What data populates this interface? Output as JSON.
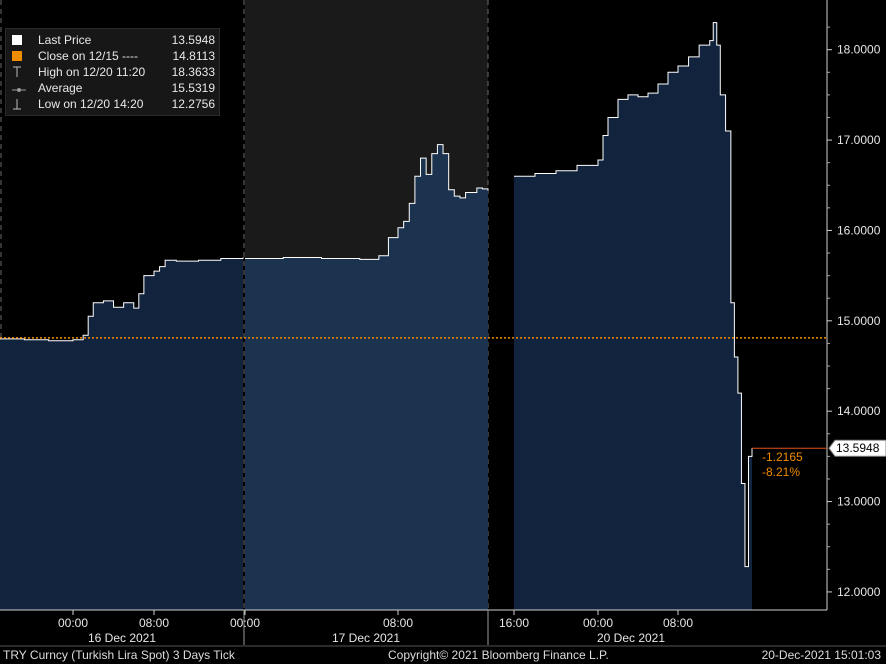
{
  "legend": {
    "items": [
      {
        "label": "Last Price",
        "value": "13.5948"
      },
      {
        "label": "Close on 12/15 ----",
        "value": "14.8113"
      },
      {
        "label": "High on 12/20 11:20",
        "value": "18.3633"
      },
      {
        "label": "Average",
        "value": "15.5319"
      },
      {
        "label": "Low on 12/20 14:20",
        "value": "12.2756"
      }
    ]
  },
  "last_price_tag": "13.5948",
  "change": {
    "abs": "-1.2165",
    "pct": "-8.21%"
  },
  "footer": {
    "left": "TRY Curncy (Turkish Lira Spot) 3 Days  Tick",
    "center": "Copyright© 2021 Bloomberg Finance L.P.",
    "right": "20-Dec-2021 15:01:03"
  },
  "colors": {
    "area": "#12233d",
    "area_shaded": "#1c3350",
    "price_line": "#ffffff",
    "close_line": "#f08c00",
    "change_text": "#f08c00",
    "shade_bg": "#1a1a1a"
  },
  "chart_data": {
    "type": "area",
    "title": "",
    "ylabel": "",
    "xlabel": "",
    "ylim": [
      11.8,
      18.55
    ],
    "y_ticks": [
      "12.0000",
      "13.0000",
      "14.0000",
      "15.0000",
      "16.0000",
      "17.0000",
      "18.0000"
    ],
    "reference_line": {
      "name": "Close on 12/15",
      "value": 14.8113
    },
    "x_ticks": [
      {
        "label": "00:00",
        "time": "16 Dec 00:00"
      },
      {
        "label": "08:00",
        "time": "16 Dec 08:00"
      },
      {
        "label": "00:00",
        "time": "17 Dec 00:00"
      },
      {
        "label": "08:00",
        "time": "17 Dec 08:00"
      },
      {
        "label": "16:00",
        "time": "19 Dec 16:00"
      },
      {
        "label": "00:00",
        "time": "20 Dec 00:00"
      },
      {
        "label": "08:00",
        "time": "20 Dec 08:00"
      }
    ],
    "day_labels": [
      "16 Dec 2021",
      "17 Dec 2021",
      "20 Dec 2021"
    ],
    "segments": [
      {
        "day": "16 Dec 2021",
        "points": [
          [
            "15 Dec 18:00",
            14.8
          ],
          [
            "15 Dec 20:00",
            14.79
          ],
          [
            "15 Dec 22:00",
            14.78
          ],
          [
            "16 Dec 00:00",
            14.79
          ],
          [
            "16 Dec 01:00",
            14.84
          ],
          [
            "16 Dec 01:30",
            15.05
          ],
          [
            "16 Dec 02:00",
            15.2
          ],
          [
            "16 Dec 03:00",
            15.22
          ],
          [
            "16 Dec 04:00",
            15.15
          ],
          [
            "16 Dec 05:00",
            15.2
          ],
          [
            "16 Dec 06:00",
            15.14
          ],
          [
            "16 Dec 06:30",
            15.3
          ],
          [
            "16 Dec 07:00",
            15.5
          ],
          [
            "16 Dec 08:00",
            15.55
          ],
          [
            "16 Dec 09:00",
            15.6
          ],
          [
            "16 Dec 10:00",
            15.67
          ],
          [
            "16 Dec 12:00",
            15.66
          ],
          [
            "16 Dec 16:00",
            15.67
          ],
          [
            "16 Dec 20:00",
            15.69
          ],
          [
            "16 Dec 23:59",
            15.7
          ]
        ]
      },
      {
        "day": "17 Dec 2021",
        "points": [
          [
            "17 Dec 00:00",
            15.69
          ],
          [
            "17 Dec 02:00",
            15.7
          ],
          [
            "17 Dec 04:00",
            15.69
          ],
          [
            "17 Dec 06:00",
            15.68
          ],
          [
            "17 Dec 07:00",
            15.72
          ],
          [
            "17 Dec 07:30",
            15.92
          ],
          [
            "17 Dec 08:00",
            16.03
          ],
          [
            "17 Dec 09:00",
            16.1
          ],
          [
            "17 Dec 10:00",
            16.3
          ],
          [
            "17 Dec 11:00",
            16.6
          ],
          [
            "17 Dec 12:00",
            16.8
          ],
          [
            "17 Dec 13:00",
            16.62
          ],
          [
            "17 Dec 14:00",
            16.85
          ],
          [
            "17 Dec 15:00",
            16.95
          ],
          [
            "17 Dec 16:00",
            16.85
          ],
          [
            "17 Dec 17:00",
            16.45
          ],
          [
            "17 Dec 18:00",
            16.38
          ],
          [
            "17 Dec 19:00",
            16.36
          ],
          [
            "17 Dec 20:00",
            16.42
          ],
          [
            "17 Dec 22:00",
            16.47
          ],
          [
            "17 Dec 23:00",
            16.46
          ],
          [
            "17 Dec 23:59",
            16.44
          ]
        ]
      },
      {
        "day": "20 Dec 2021",
        "points": [
          [
            "19 Dec 16:00",
            16.6
          ],
          [
            "19 Dec 18:00",
            16.63
          ],
          [
            "19 Dec 20:00",
            16.66
          ],
          [
            "19 Dec 22:00",
            16.72
          ],
          [
            "20 Dec 00:00",
            16.78
          ],
          [
            "20 Dec 00:30",
            17.05
          ],
          [
            "20 Dec 01:00",
            17.25
          ],
          [
            "20 Dec 02:00",
            17.45
          ],
          [
            "20 Dec 03:00",
            17.5
          ],
          [
            "20 Dec 04:00",
            17.48
          ],
          [
            "20 Dec 05:00",
            17.52
          ],
          [
            "20 Dec 06:00",
            17.62
          ],
          [
            "20 Dec 07:00",
            17.75
          ],
          [
            "20 Dec 08:00",
            17.82
          ],
          [
            "20 Dec 09:00",
            17.92
          ],
          [
            "20 Dec 10:00",
            18.05
          ],
          [
            "20 Dec 11:00",
            18.1
          ],
          [
            "20 Dec 11:20",
            18.3
          ],
          [
            "20 Dec 11:40",
            18.05
          ],
          [
            "20 Dec 12:00",
            17.5
          ],
          [
            "20 Dec 12:30",
            17.1
          ],
          [
            "20 Dec 13:00",
            15.2
          ],
          [
            "20 Dec 13:20",
            14.6
          ],
          [
            "20 Dec 13:40",
            14.2
          ],
          [
            "20 Dec 14:00",
            13.2
          ],
          [
            "20 Dec 14:20",
            12.28
          ],
          [
            "20 Dec 14:40",
            13.5
          ],
          [
            "20 Dec 15:00",
            13.59
          ]
        ]
      }
    ]
  }
}
